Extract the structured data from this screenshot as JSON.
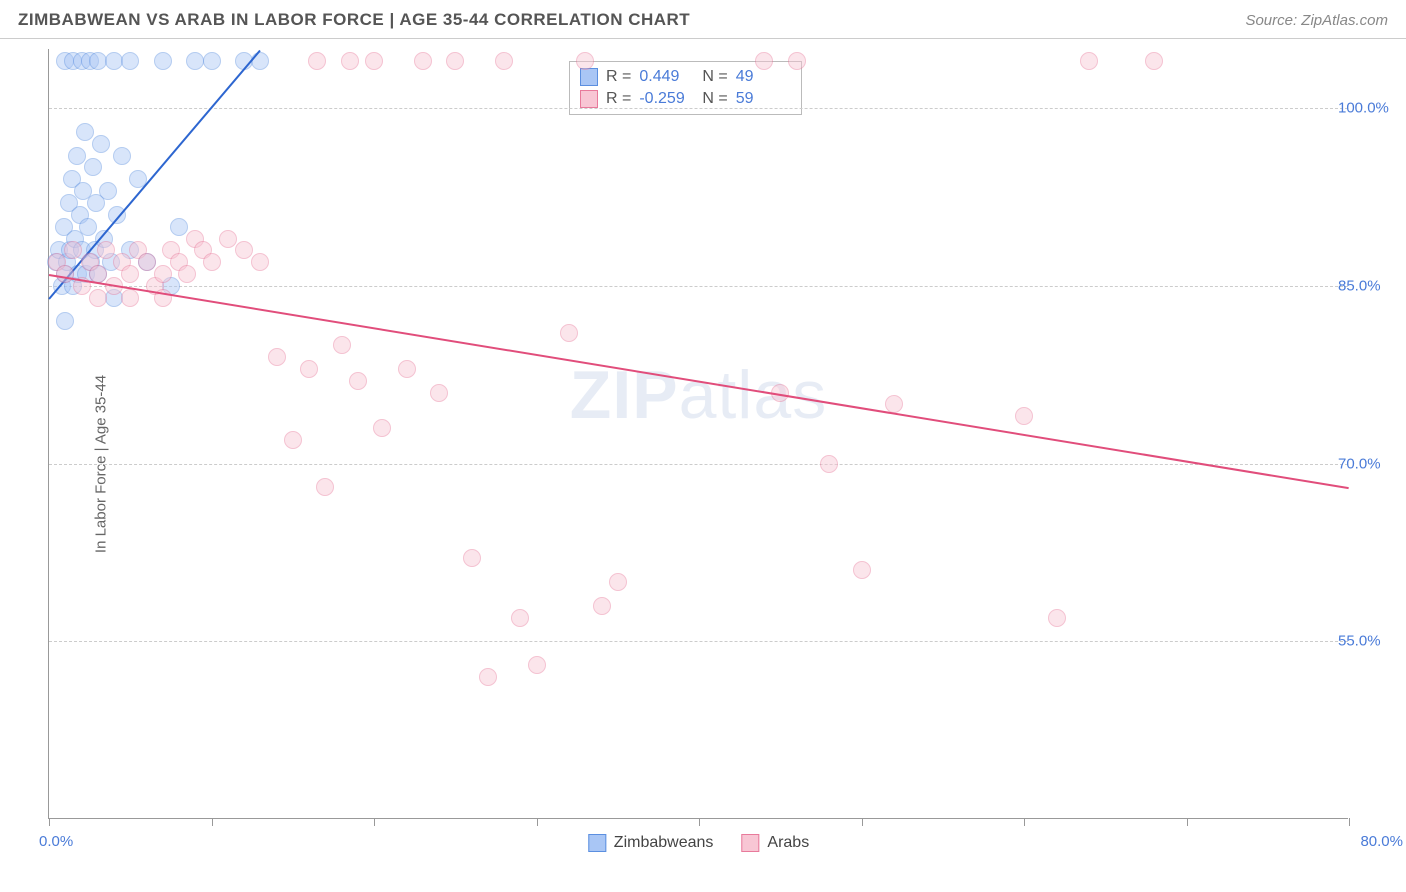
{
  "header": {
    "title": "ZIMBABWEAN VS ARAB IN LABOR FORCE | AGE 35-44 CORRELATION CHART",
    "source": "Source: ZipAtlas.com"
  },
  "chart": {
    "type": "scatter",
    "ylabel": "In Labor Force | Age 35-44",
    "watermark_bold": "ZIP",
    "watermark_light": "atlas",
    "background_color": "#ffffff",
    "grid_color": "#cccccc",
    "axis_color": "#999999",
    "label_color": "#4a7bd8",
    "xlim": [
      0,
      80
    ],
    "ylim": [
      40,
      105
    ],
    "yticks": [
      55.0,
      70.0,
      85.0,
      100.0
    ],
    "ytick_labels": [
      "55.0%",
      "70.0%",
      "85.0%",
      "100.0%"
    ],
    "xticks": [
      0,
      10,
      20,
      30,
      40,
      50,
      60,
      70,
      80
    ],
    "xtick_label_min": "0.0%",
    "xtick_label_max": "80.0%",
    "marker_radius": 9,
    "marker_opacity": 0.45,
    "series": [
      {
        "name": "Zimbabweans",
        "fill_color": "#a9c6f5",
        "stroke_color": "#5b8fe0",
        "trend_color": "#2d66d0",
        "trend": {
          "x1": 0,
          "y1": 84,
          "x2": 13,
          "y2": 105
        },
        "stats": {
          "R": "0.449",
          "N": "49"
        },
        "points": [
          [
            0.4,
            87
          ],
          [
            0.6,
            88
          ],
          [
            0.8,
            85
          ],
          [
            0.9,
            90
          ],
          [
            1.0,
            86
          ],
          [
            1.0,
            104
          ],
          [
            1.1,
            87
          ],
          [
            1.2,
            92
          ],
          [
            1.3,
            88
          ],
          [
            1.4,
            94
          ],
          [
            1.5,
            85
          ],
          [
            1.5,
            104
          ],
          [
            1.6,
            89
          ],
          [
            1.7,
            96
          ],
          [
            1.8,
            86
          ],
          [
            1.9,
            91
          ],
          [
            2.0,
            104
          ],
          [
            2.0,
            88
          ],
          [
            2.1,
            93
          ],
          [
            2.2,
            98
          ],
          [
            2.3,
            86
          ],
          [
            2.4,
            90
          ],
          [
            2.5,
            104
          ],
          [
            2.6,
            87
          ],
          [
            2.7,
            95
          ],
          [
            2.8,
            88
          ],
          [
            2.9,
            92
          ],
          [
            3.0,
            86
          ],
          [
            3.0,
            104
          ],
          [
            3.2,
            97
          ],
          [
            3.4,
            89
          ],
          [
            3.6,
            93
          ],
          [
            3.8,
            87
          ],
          [
            4.0,
            104
          ],
          [
            4.0,
            84
          ],
          [
            4.2,
            91
          ],
          [
            4.5,
            96
          ],
          [
            5.0,
            88
          ],
          [
            5.0,
            104
          ],
          [
            5.5,
            94
          ],
          [
            6.0,
            87
          ],
          [
            7.0,
            104
          ],
          [
            7.5,
            85
          ],
          [
            8.0,
            90
          ],
          [
            9.0,
            104
          ],
          [
            10.0,
            104
          ],
          [
            12.0,
            104
          ],
          [
            13.0,
            104
          ],
          [
            1.0,
            82
          ]
        ]
      },
      {
        "name": "Arabs",
        "fill_color": "#f8c6d4",
        "stroke_color": "#e87a9b",
        "trend_color": "#e14d7b",
        "trend": {
          "x1": 0,
          "y1": 86,
          "x2": 80,
          "y2": 68
        },
        "stats": {
          "R": "-0.259",
          "N": "59"
        },
        "points": [
          [
            0.5,
            87
          ],
          [
            1.0,
            86
          ],
          [
            1.5,
            88
          ],
          [
            2.0,
            85
          ],
          [
            2.5,
            87
          ],
          [
            3.0,
            86
          ],
          [
            3.5,
            88
          ],
          [
            4.0,
            85
          ],
          [
            4.5,
            87
          ],
          [
            5.0,
            86
          ],
          [
            5.5,
            88
          ],
          [
            6.0,
            87
          ],
          [
            6.5,
            85
          ],
          [
            7.0,
            86
          ],
          [
            7.5,
            88
          ],
          [
            8.0,
            87
          ],
          [
            8.5,
            86
          ],
          [
            9.0,
            89
          ],
          [
            9.5,
            88
          ],
          [
            10.0,
            87
          ],
          [
            11.0,
            89
          ],
          [
            12.0,
            88
          ],
          [
            13.0,
            87
          ],
          [
            14.0,
            79
          ],
          [
            15.0,
            72
          ],
          [
            16.0,
            78
          ],
          [
            16.5,
            104
          ],
          [
            17.0,
            68
          ],
          [
            18.0,
            80
          ],
          [
            18.5,
            104
          ],
          [
            19.0,
            77
          ],
          [
            20.0,
            104
          ],
          [
            20.5,
            73
          ],
          [
            22.0,
            78
          ],
          [
            23.0,
            104
          ],
          [
            24.0,
            76
          ],
          [
            25.0,
            104
          ],
          [
            26.0,
            62
          ],
          [
            27.0,
            52
          ],
          [
            28.0,
            104
          ],
          [
            29.0,
            57
          ],
          [
            30.0,
            53
          ],
          [
            32.0,
            81
          ],
          [
            33.0,
            104
          ],
          [
            34.0,
            58
          ],
          [
            35.0,
            60
          ],
          [
            44.0,
            104
          ],
          [
            45.0,
            76
          ],
          [
            46.0,
            104
          ],
          [
            48.0,
            70
          ],
          [
            50.0,
            61
          ],
          [
            52.0,
            75
          ],
          [
            60.0,
            74
          ],
          [
            62.0,
            57
          ],
          [
            64.0,
            104
          ],
          [
            68.0,
            104
          ],
          [
            3.0,
            84
          ],
          [
            5.0,
            84
          ],
          [
            7.0,
            84
          ]
        ]
      }
    ],
    "bottom_legend": [
      {
        "label": "Zimbabweans",
        "fill": "#a9c6f5",
        "stroke": "#5b8fe0"
      },
      {
        "label": "Arabs",
        "fill": "#f8c6d4",
        "stroke": "#e87a9b"
      }
    ]
  }
}
